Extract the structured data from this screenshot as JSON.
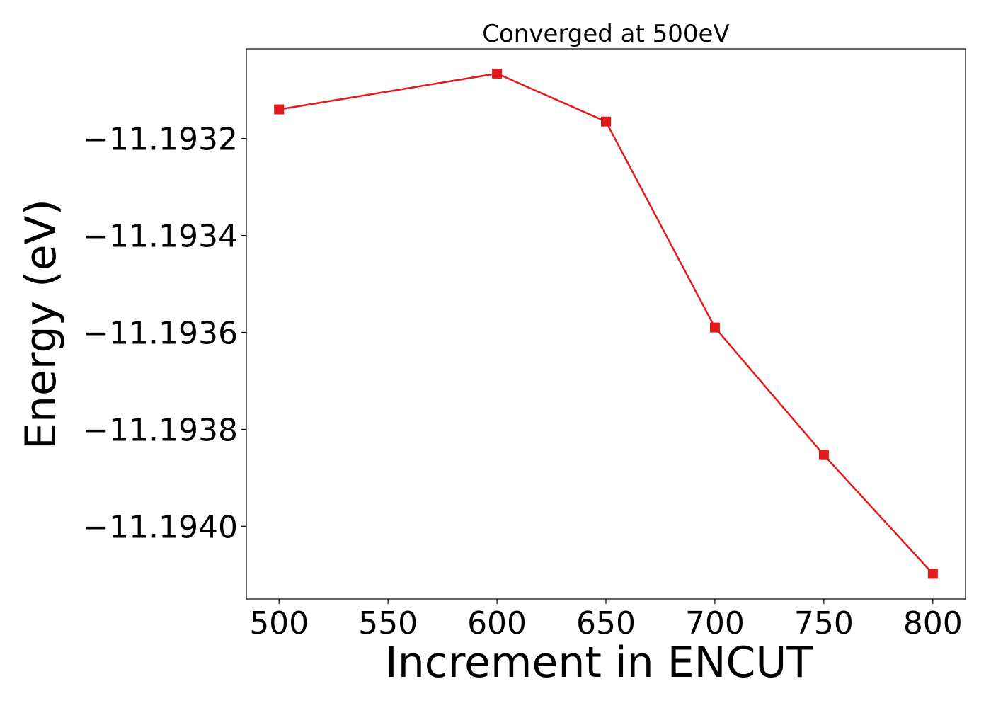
{
  "chart_data": {
    "type": "line",
    "title": "Converged at 500eV",
    "xlabel": "Increment in ENCUT",
    "ylabel": "Energy (eV)",
    "x": [
      500,
      600,
      650,
      700,
      750,
      800
    ],
    "series": [
      {
        "values": [
          -11.19314,
          -11.193066,
          -11.193165,
          -11.19359,
          -11.193853,
          -11.194098
        ],
        "color": "#e31a1c",
        "marker": "square"
      }
    ],
    "xlim": [
      485,
      815
    ],
    "ylim": [
      -11.19415,
      -11.193015
    ],
    "xticks": [
      500,
      550,
      600,
      650,
      700,
      750,
      800
    ],
    "xtick_labels": [
      "500",
      "550",
      "600",
      "650",
      "700",
      "750",
      "800"
    ],
    "yticks": [
      -11.1932,
      -11.1934,
      -11.1936,
      -11.1938,
      -11.194
    ],
    "ytick_labels": [
      "−11.1932",
      "−11.1934",
      "−11.1936",
      "−11.1938",
      "−11.1940"
    ],
    "grid": false,
    "legend": "none"
  }
}
